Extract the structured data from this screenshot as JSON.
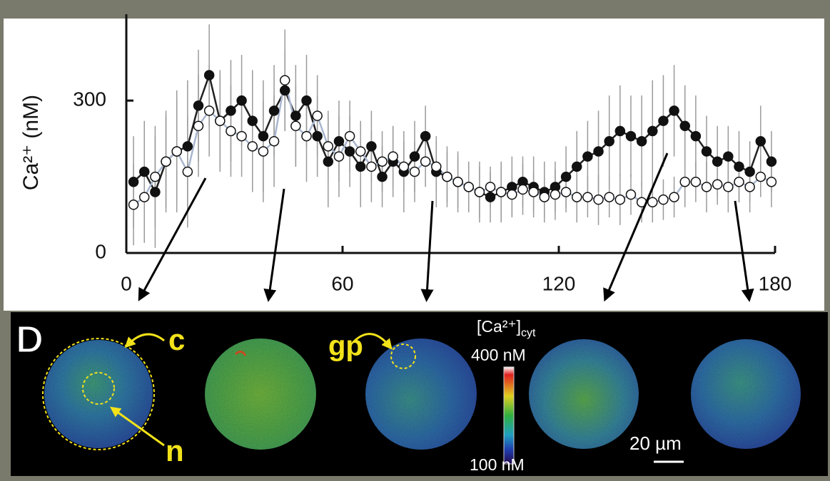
{
  "chart_data": {
    "type": "scatter",
    "ylabel": "Ca²⁺ (nM)",
    "x": [
      2,
      5,
      8,
      11,
      14,
      17,
      20,
      23,
      26,
      29,
      32,
      35,
      38,
      41,
      44,
      47,
      50,
      53,
      56,
      59,
      62,
      65,
      68,
      71,
      74,
      77,
      80,
      83,
      86,
      89,
      92,
      95,
      98,
      101,
      104,
      107,
      110,
      113,
      116,
      119,
      122,
      125,
      128,
      131,
      134,
      137,
      140,
      143,
      146,
      149,
      152,
      155,
      158,
      161,
      164,
      167,
      170,
      173,
      176,
      179
    ],
    "series": [
      {
        "color": "#111111",
        "marker_fill": "#111111",
        "line_color": "#222222",
        "values": [
          140,
          160,
          120,
          180,
          200,
          210,
          290,
          350,
          260,
          280,
          300,
          260,
          230,
          280,
          320,
          270,
          300,
          230,
          180,
          220,
          200,
          170,
          210,
          150,
          180,
          160,
          190,
          230,
          160,
          150,
          140,
          130,
          120,
          110,
          120,
          130,
          140,
          130,
          120,
          130,
          150,
          170,
          190,
          200,
          220,
          240,
          230,
          220,
          240,
          260,
          280,
          250,
          230,
          200,
          180,
          190,
          170,
          160,
          220,
          180
        ],
        "errors": [
          90,
          100,
          110,
          100,
          120,
          130,
          110,
          100,
          90,
          100,
          90,
          100,
          110,
          90,
          80,
          100,
          90,
          80,
          90,
          80,
          70,
          80,
          70,
          60,
          70,
          80,
          70,
          60,
          70,
          60,
          60,
          50,
          60,
          50,
          60,
          60,
          50,
          60,
          60,
          50,
          60,
          70,
          70,
          80,
          90,
          90,
          80,
          90,
          100,
          90,
          90,
          80,
          80,
          70,
          70,
          60,
          70,
          60,
          70,
          60
        ]
      },
      {
        "color": "#111111",
        "marker_fill": "#ffffff",
        "line_color": "#a9b6cf",
        "values": [
          95,
          110,
          150,
          180,
          200,
          160,
          250,
          280,
          260,
          240,
          230,
          210,
          200,
          220,
          340,
          250,
          230,
          270,
          210,
          190,
          230,
          200,
          170,
          180,
          190,
          170,
          160,
          180,
          170,
          150,
          140,
          130,
          120,
          130,
          120,
          115,
          125,
          120,
          110,
          115,
          120,
          110,
          110,
          105,
          110,
          105,
          115,
          100,
          100,
          105,
          110,
          140,
          140,
          130,
          135,
          130,
          140,
          130,
          150,
          140
        ],
        "errors": [
          80,
          90,
          100,
          90,
          100,
          110,
          100,
          90,
          100,
          90,
          80,
          90,
          100,
          90,
          100,
          80,
          90,
          80,
          70,
          80,
          70,
          60,
          70,
          60,
          60,
          50,
          60,
          50,
          50,
          50,
          50,
          40,
          50,
          40,
          50,
          40,
          50,
          40,
          40,
          50,
          40,
          50,
          40,
          50,
          40,
          50,
          40,
          40,
          40,
          40,
          40,
          50,
          40,
          50,
          40,
          50,
          40,
          50,
          40,
          50
        ]
      }
    ],
    "error_color": "#9a9a9a",
    "xlim": [
      0,
      180
    ],
    "xticks": [
      0,
      60,
      120,
      180
    ],
    "ylim": [
      0,
      470
    ],
    "yticks": [
      0,
      300
    ]
  },
  "panel_d": {
    "label": "D",
    "cyto": "c",
    "nucleus": "n",
    "granule": "gp",
    "colorbar_title": "[Ca²⁺]",
    "colorbar_sub": "cyt",
    "colorbar_max": "400 nM",
    "colorbar_min": "100 nM",
    "scale_bar": "20 µm"
  }
}
